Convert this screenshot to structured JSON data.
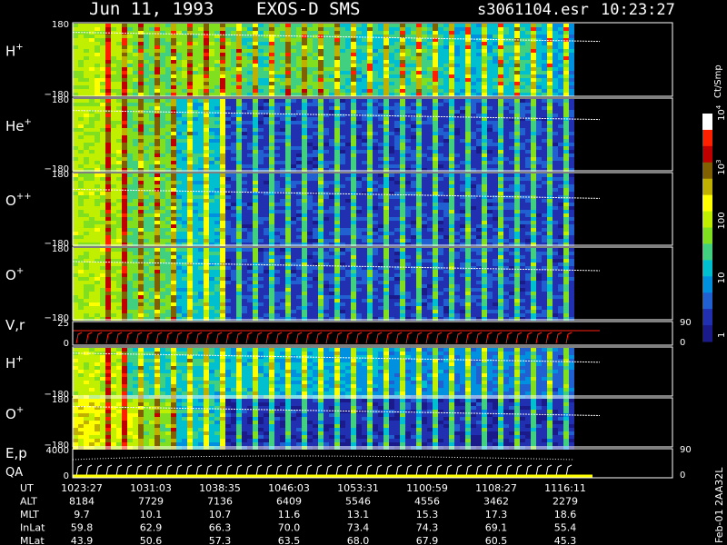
{
  "header": {
    "date": "Jun 11, 1993",
    "instrument": "EXOS-D SMS",
    "file": "s3061104.esr",
    "time": "10:23:27"
  },
  "panels": [
    {
      "id": "h1",
      "label": "H",
      "sup": "+",
      "ymax": "180",
      "ymin": "−180",
      "kind": "spectro",
      "lineY": 0.18
    },
    {
      "id": "he",
      "label": "He",
      "sup": "+",
      "ymax": "180",
      "ymin": "−180",
      "kind": "spectro",
      "lineY": 0.22
    },
    {
      "id": "oo",
      "label": "O",
      "sup": "++",
      "ymax": "180",
      "ymin": "−180",
      "kind": "spectro",
      "lineY": 0.28
    },
    {
      "id": "o1",
      "label": "O",
      "sup": "+",
      "ymax": "180",
      "ymin": "−180",
      "kind": "spectro",
      "lineY": 0.25
    },
    {
      "id": "vr",
      "label": "V,r",
      "sup": "",
      "ymax": "25",
      "ymin": "0",
      "right_max": "90",
      "right_min": "0",
      "kind": "line"
    },
    {
      "id": "h2",
      "label": "H",
      "sup": "+",
      "ymax": "",
      "ymin": "−180",
      "kind": "spectro",
      "lineY": 0.2
    },
    {
      "id": "o2",
      "label": "O",
      "sup": "+",
      "ymax": "180",
      "ymin": "−180",
      "kind": "spectro",
      "lineY": 0.25
    },
    {
      "id": "ep",
      "label": "E,p",
      "sup": "",
      "label2": "QA",
      "ymax": "4000",
      "ymin": "0",
      "right_max": "90",
      "right_min": "0",
      "kind": "line"
    }
  ],
  "colorbar": {
    "unit": "Ct/Smp",
    "ticks": [
      {
        "label": "10",
        "sup": "4",
        "level": 4
      },
      {
        "label": "10",
        "sup": "3",
        "level": 3
      },
      {
        "label": "100",
        "sup": "",
        "level": 2
      },
      {
        "label": "10",
        "sup": "",
        "level": 1
      },
      {
        "label": "1",
        "sup": "",
        "level": 0
      }
    ],
    "colors": [
      "#1a1a8a",
      "#2030b0",
      "#2060d0",
      "#0090e0",
      "#00c0d0",
      "#40d080",
      "#80e020",
      "#c0f000",
      "#ffff00",
      "#c0b000",
      "#806000",
      "#c00000",
      "#ff2000",
      "#ffffff"
    ]
  },
  "chart_data": {
    "type": "heatmap",
    "title": "Jun 11, 1993   EXOS-D SMS",
    "x_ticks": [
      "1023:27",
      "1031:03",
      "1038:35",
      "1046:03",
      "1053:31",
      "1100:59",
      "1108:27",
      "1116:11"
    ],
    "orbit_table": {
      "rows": [
        {
          "label": "UT",
          "values": [
            "1023:27",
            "1031:03",
            "1038:35",
            "1046:03",
            "1053:31",
            "1100:59",
            "1108:27",
            "1116:11"
          ]
        },
        {
          "label": "ALT",
          "values": [
            "8184",
            "7729",
            "7136",
            "6409",
            "5546",
            "4556",
            "3462",
            "2279"
          ]
        },
        {
          "label": "MLT",
          "values": [
            "9.7",
            "10.1",
            "10.7",
            "11.6",
            "13.1",
            "15.3",
            "17.3",
            "18.6"
          ]
        },
        {
          "label": "InLat",
          "values": [
            "59.8",
            "62.9",
            "66.3",
            "70.0",
            "73.4",
            "74.3",
            "69.1",
            "55.4"
          ]
        },
        {
          "label": "MLat",
          "values": [
            "43.9",
            "50.6",
            "57.3",
            "63.5",
            "68.0",
            "67.9",
            "60.5",
            "45.3"
          ]
        }
      ]
    }
  },
  "footer": {
    "side_label": "Feb-01 2AA32L"
  }
}
